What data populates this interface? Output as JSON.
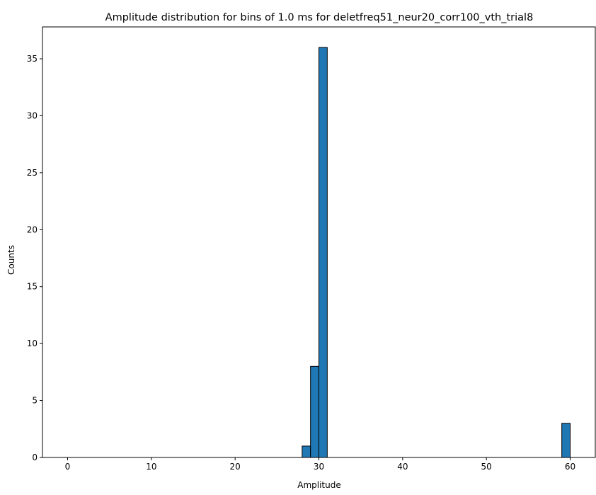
{
  "chart_data": {
    "type": "bar",
    "title": "Amplitude distribution for bins of 1.0 ms for deletfreq51_neur20_corr100_vth_trial8",
    "xlabel": "Amplitude",
    "ylabel": "Counts",
    "xlim": [
      -3,
      63
    ],
    "ylim": [
      0,
      37.8
    ],
    "xticks": [
      0,
      10,
      20,
      30,
      40,
      50,
      60
    ],
    "yticks": [
      0,
      5,
      10,
      15,
      20,
      25,
      30,
      35
    ],
    "bin_width": 1.0,
    "bars": [
      {
        "x_start": 28,
        "x_end": 29,
        "value": 1
      },
      {
        "x_start": 29,
        "x_end": 30,
        "value": 8
      },
      {
        "x_start": 30,
        "x_end": 31,
        "value": 36
      },
      {
        "x_start": 59,
        "x_end": 60,
        "value": 3
      }
    ],
    "bar_color": "#1f77b4",
    "edge_color": "#000000",
    "grid": false,
    "legend": false
  }
}
